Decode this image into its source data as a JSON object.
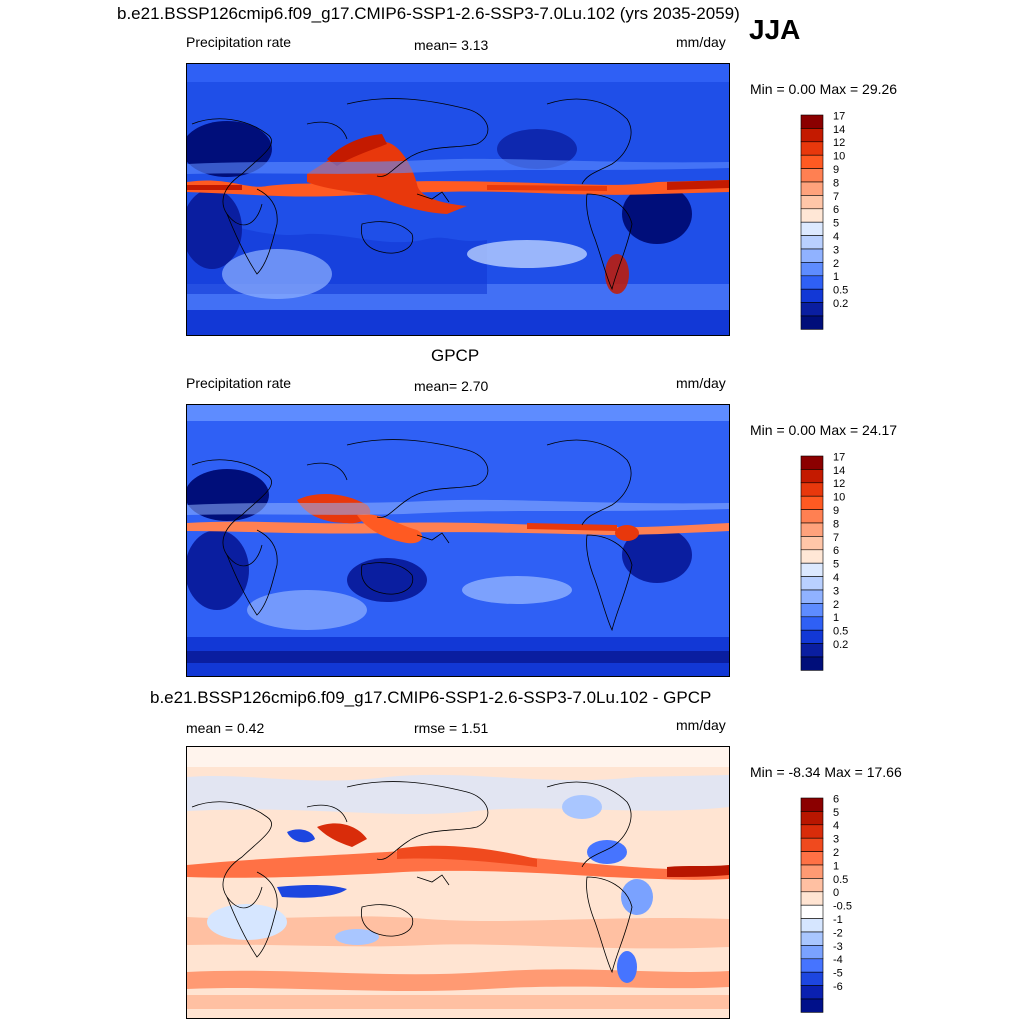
{
  "season": "JJA",
  "panels": [
    {
      "id": "model",
      "title": "b.e21.BSSP126cmip6.f09_g17.CMIP6-SSP1-2.6-SSP3-7.0Lu.102 (yrs 2035-2059)",
      "left_label": "Precipitation rate",
      "center_label": "mean=   3.13",
      "units": "mm/day",
      "minmax": "Min =   0.00 Max =  29.26",
      "colorbar": {
        "levels": [
          "17",
          "14",
          "12",
          "10",
          "9",
          "8",
          "7",
          "6",
          "5",
          "4",
          "3",
          "2",
          "1",
          "0.5",
          "0.2"
        ],
        "colors": [
          "#8b0000",
          "#c41a00",
          "#e8380c",
          "#ff5a22",
          "#ff8052",
          "#ffa27c",
          "#ffc6a8",
          "#ffe7d6",
          "#dce9ff",
          "#b9d0ff",
          "#90b2ff",
          "#5e8cff",
          "#2f60f5",
          "#1238d6",
          "#0a1ea0",
          "#000e7a"
        ]
      }
    },
    {
      "id": "obs",
      "title": "GPCP",
      "left_label": "Precipitation rate",
      "center_label": "mean=   2.70",
      "units": "mm/day",
      "minmax": "Min =   0.00 Max =  24.17",
      "colorbar": {
        "levels": [
          "17",
          "14",
          "12",
          "10",
          "9",
          "8",
          "7",
          "6",
          "5",
          "4",
          "3",
          "2",
          "1",
          "0.5",
          "0.2"
        ],
        "colors": [
          "#8b0000",
          "#c41a00",
          "#e8380c",
          "#ff5a22",
          "#ff8052",
          "#ffa27c",
          "#ffc6a8",
          "#ffe7d6",
          "#dce9ff",
          "#b9d0ff",
          "#90b2ff",
          "#5e8cff",
          "#2f60f5",
          "#1238d6",
          "#0a1ea0",
          "#000e7a"
        ]
      }
    },
    {
      "id": "diff",
      "title": "b.e21.BSSP126cmip6.f09_g17.CMIP6-SSP1-2.6-SSP3-7.0Lu.102 - GPCP",
      "left_label": "mean =   0.42",
      "center_label": "rmse =   1.51",
      "units": "mm/day",
      "minmax": "Min =  -8.34 Max =  17.66",
      "colorbar": {
        "levels": [
          "6",
          "5",
          "4",
          "3",
          "2",
          "1",
          "0.5",
          "0",
          "-0.5",
          "-1",
          "-2",
          "-3",
          "-4",
          "-5",
          "-6"
        ],
        "colors": [
          "#8b0000",
          "#b81600",
          "#d92c0a",
          "#f04a1e",
          "#ff7145",
          "#ff9a73",
          "#ffc0a2",
          "#ffe4d2",
          "#ffffff",
          "#d6e6ff",
          "#a9c6ff",
          "#7aa2ff",
          "#4674ff",
          "#1d46e0",
          "#0a20b0",
          "#00108a"
        ]
      }
    }
  ]
}
